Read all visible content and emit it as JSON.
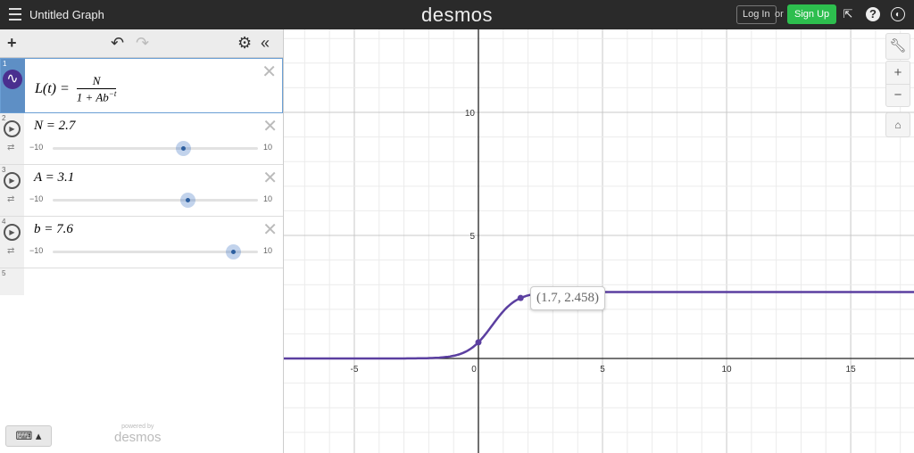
{
  "header": {
    "title": "Untitled Graph",
    "logo": "desmos",
    "login": "Log In",
    "or": "or",
    "signup": "Sign Up",
    "icons": [
      "share-icon",
      "help-icon",
      "globe-icon"
    ]
  },
  "toolbar": {
    "add": "+",
    "undo": "↶",
    "redo": "↷",
    "settings": "⚙",
    "collapse": "«"
  },
  "expressions": [
    {
      "index": "1",
      "latex": "L(t) = N / (1 + Ab^(−t))",
      "lhs": "L(t) =",
      "num": "N",
      "den": "1 + Ab",
      "exp": "−t"
    },
    {
      "index": "2",
      "label": "N = 2.7",
      "value": 2.7,
      "min": "−10",
      "max": "10"
    },
    {
      "index": "3",
      "label": "A = 3.1",
      "value": 3.1,
      "min": "−10",
      "max": "10"
    },
    {
      "index": "4",
      "label": "b = 7.6",
      "value": 7.6,
      "min": "−10",
      "max": "10"
    },
    {
      "index": "5"
    }
  ],
  "powered_by": "powered by",
  "powered_logo": "desmos",
  "graph": {
    "curve_color": "#5b3fa0",
    "xlim": [
      -7.84,
      17.55
    ],
    "ylim": [
      -3.84,
      13.37
    ],
    "x_ticks": [
      "-5",
      "0",
      "5",
      "10",
      "15"
    ],
    "y_ticks": [
      "5",
      "10"
    ],
    "point": {
      "x": 1.7,
      "y": 2.458,
      "label": "(1.7, 2.458)"
    },
    "N": 2.7,
    "A": 3.1,
    "b": 7.6
  },
  "colors": {
    "signup": "#2dbe4e",
    "selected": "#5e8fc5"
  }
}
